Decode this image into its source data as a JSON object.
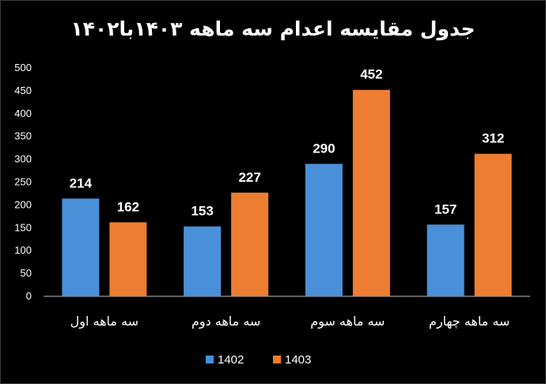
{
  "chart_data": {
    "type": "bar",
    "title": "جدول مقایسه اعدام سه ماهه ۱۴۰۳با۱۴۰۲",
    "categories": [
      "سه ماهه اول",
      "سه ماهه دوم",
      "سه ماهه سوم",
      "سه ماهه چهارم"
    ],
    "series": [
      {
        "name": "1402",
        "values": [
          214,
          153,
          290,
          157
        ],
        "color": "#4a90d9"
      },
      {
        "name": "1403",
        "values": [
          162,
          227,
          452,
          312
        ],
        "color": "#ed7d31"
      }
    ],
    "ylim": [
      0,
      500
    ],
    "yticks": [
      "0",
      "50",
      "100",
      "150",
      "200",
      "250",
      "300",
      "350",
      "400",
      "450",
      "500"
    ],
    "grid": false,
    "legend_position": "bottom"
  }
}
